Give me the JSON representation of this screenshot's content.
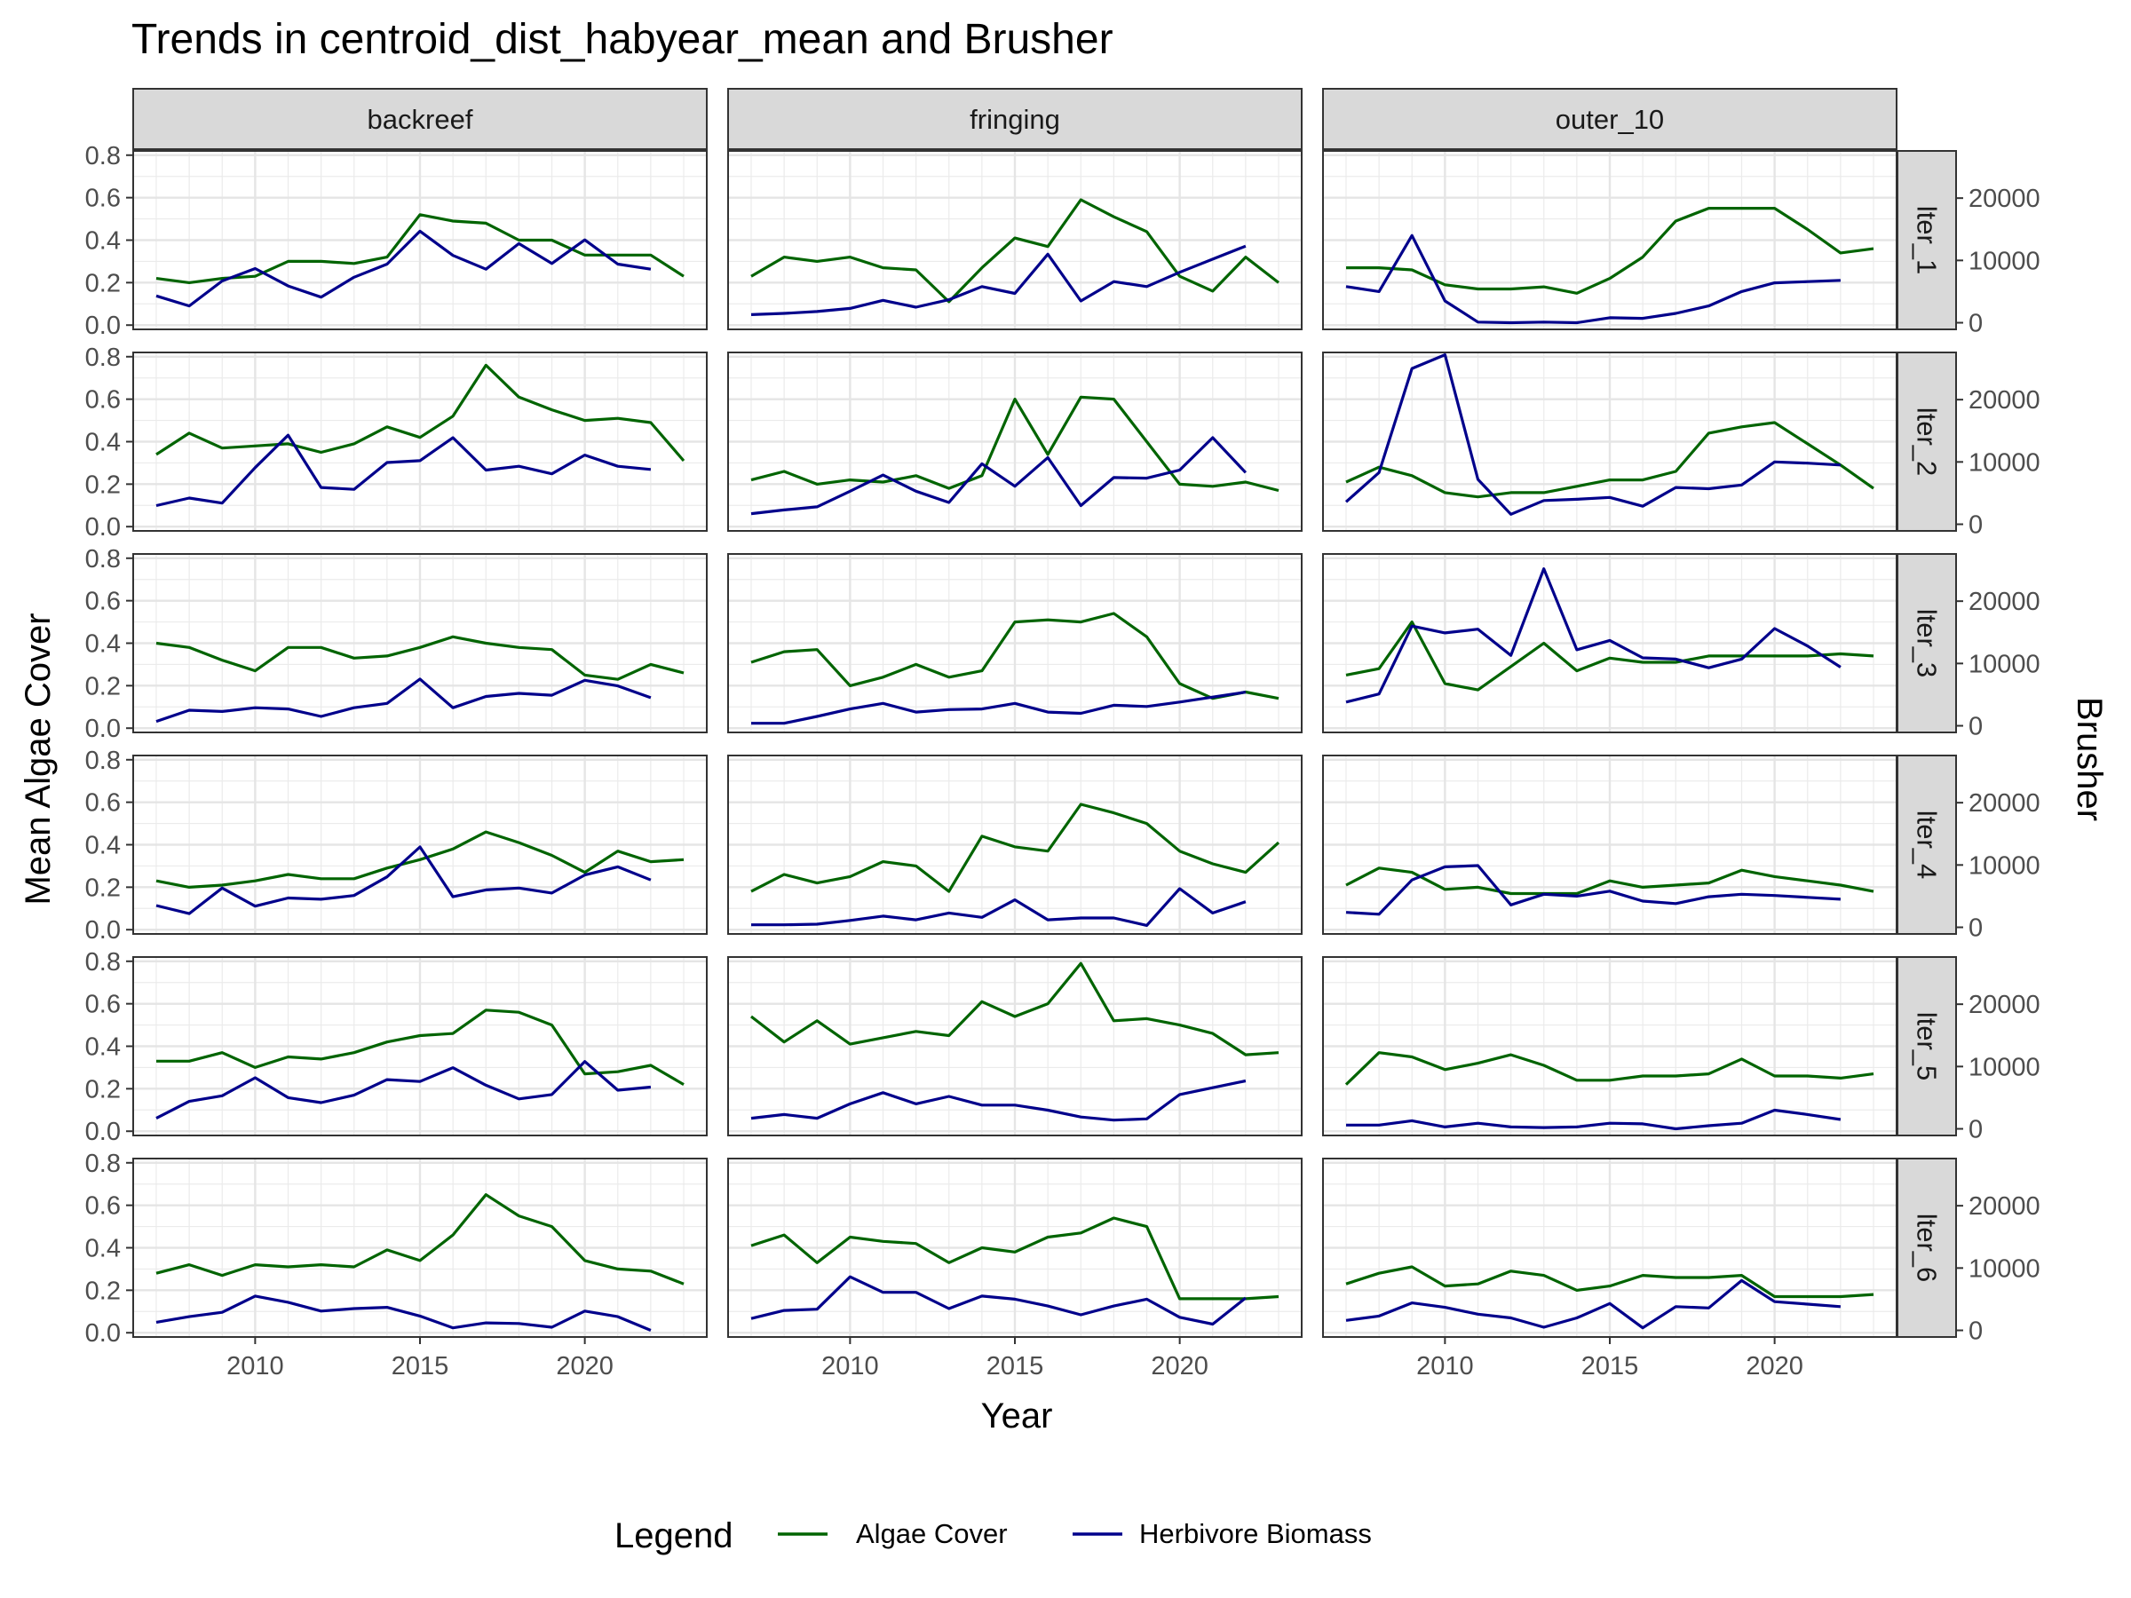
{
  "chart_data": {
    "type": "line",
    "title": "Trends in centroid_dist_habyear_mean and Brusher",
    "xlabel": "Year",
    "ylabel": "Mean Algae Cover",
    "y2label": "Brusher",
    "xlim": [
      2006.3,
      2023.7
    ],
    "ylim": [
      -0.02,
      0.82
    ],
    "y2lim": [
      -1066,
      27574
    ],
    "x_ticks": [
      2010,
      2015,
      2020
    ],
    "y_ticks": [
      0.0,
      0.2,
      0.4,
      0.6,
      0.8
    ],
    "y2_ticks": [
      0,
      10000,
      20000
    ],
    "x_tick_labels": [
      "2010",
      "2015",
      "2020"
    ],
    "y_tick_labels": [
      "0.0",
      "0.2",
      "0.4",
      "0.6",
      "0.8"
    ],
    "y2_tick_labels": [
      "0",
      "10000",
      "20000"
    ],
    "grid": true,
    "legend": {
      "title": "Legend",
      "position": "bottom",
      "entries": [
        {
          "label": "Algae Cover",
          "color": "#006400"
        },
        {
          "label": "Herbivore Biomass",
          "color": "#00008b"
        }
      ]
    },
    "colors": {
      "algae": "#006400",
      "herbivore": "#00008b"
    },
    "columns": [
      "backreef",
      "fringing",
      "outer_10"
    ],
    "rows": [
      "lter_1",
      "lter_2",
      "lter_3",
      "lter_4",
      "lter_5",
      "lter_6"
    ],
    "algae_years": [
      2007,
      2008,
      2009,
      2010,
      2011,
      2012,
      2013,
      2014,
      2015,
      2016,
      2017,
      2018,
      2019,
      2020,
      2021,
      2022,
      2023
    ],
    "herbivore_years": [
      2007,
      2008,
      2009,
      2010,
      2011,
      2012,
      2013,
      2014,
      2015,
      2016,
      2017,
      2018,
      2019,
      2020,
      2021,
      2022
    ],
    "panels": [
      {
        "column": "backreef",
        "row": "lter_1",
        "algae": [
          0.22,
          0.2,
          0.22,
          0.23,
          0.3,
          0.3,
          0.29,
          0.32,
          0.52,
          0.49,
          0.48,
          0.4,
          0.4,
          0.33,
          0.33,
          0.33,
          0.23
        ],
        "herbivore": [
          4300,
          2700,
          6700,
          8700,
          5900,
          4100,
          7300,
          9400,
          14700,
          10800,
          8600,
          12700,
          9500,
          13300,
          9400,
          8600
        ]
      },
      {
        "column": "fringing",
        "row": "lter_1",
        "algae": [
          0.23,
          0.32,
          0.3,
          0.32,
          0.27,
          0.26,
          0.11,
          0.27,
          0.41,
          0.37,
          0.59,
          0.51,
          0.44,
          0.23,
          0.16,
          0.32,
          0.2
        ],
        "herbivore": [
          1300,
          1500,
          1800,
          2300,
          3600,
          2500,
          3700,
          5800,
          4700,
          11000,
          3500,
          6600,
          5800,
          8100,
          10200,
          12300
        ]
      },
      {
        "column": "outer_10",
        "row": "lter_1",
        "algae": [
          0.27,
          0.27,
          0.26,
          0.19,
          0.17,
          0.17,
          0.18,
          0.15,
          0.22,
          0.32,
          0.49,
          0.55,
          0.55,
          0.55,
          0.45,
          0.34,
          0.36
        ],
        "herbivore": [
          5800,
          5000,
          14000,
          3500,
          100,
          0,
          100,
          0,
          800,
          700,
          1500,
          2700,
          5000,
          6400,
          6600,
          6800
        ]
      },
      {
        "column": "backreef",
        "row": "lter_2",
        "algae": [
          0.34,
          0.44,
          0.37,
          0.38,
          0.39,
          0.35,
          0.39,
          0.47,
          0.42,
          0.52,
          0.76,
          0.61,
          0.55,
          0.5,
          0.51,
          0.49,
          0.31
        ],
        "herbivore": [
          3000,
          4200,
          3400,
          9100,
          14300,
          5900,
          5600,
          9900,
          10200,
          13900,
          8700,
          9300,
          8100,
          11100,
          9300,
          8800
        ]
      },
      {
        "column": "fringing",
        "row": "lter_2",
        "algae": [
          0.22,
          0.26,
          0.2,
          0.22,
          0.21,
          0.24,
          0.18,
          0.24,
          0.6,
          0.34,
          0.61,
          0.6,
          0.4,
          0.2,
          0.19,
          0.21,
          0.17
        ],
        "herbivore": [
          1700,
          2300,
          2800,
          5300,
          7900,
          5300,
          3500,
          9700,
          6100,
          10700,
          3000,
          7500,
          7400,
          8700,
          13900,
          8300
        ]
      },
      {
        "column": "outer_10",
        "row": "lter_2",
        "algae": [
          0.21,
          0.28,
          0.24,
          0.16,
          0.14,
          0.16,
          0.16,
          0.19,
          0.22,
          0.22,
          0.26,
          0.44,
          0.47,
          0.49,
          0.39,
          0.29,
          0.18
        ],
        "herbivore": [
          3600,
          8300,
          25000,
          27200,
          7200,
          1600,
          3800,
          4000,
          4300,
          2900,
          5900,
          5700,
          6300,
          10000,
          9800,
          9500
        ]
      },
      {
        "column": "backreef",
        "row": "lter_3",
        "algae": [
          0.4,
          0.38,
          0.32,
          0.27,
          0.38,
          0.38,
          0.33,
          0.34,
          0.38,
          0.43,
          0.4,
          0.38,
          0.37,
          0.25,
          0.23,
          0.3,
          0.26
        ],
        "herbivore": [
          700,
          2500,
          2300,
          2900,
          2700,
          1500,
          2900,
          3600,
          7500,
          2900,
          4700,
          5200,
          4900,
          7300,
          6400,
          4500
        ]
      },
      {
        "column": "fringing",
        "row": "lter_3",
        "algae": [
          0.31,
          0.36,
          0.37,
          0.2,
          0.24,
          0.3,
          0.24,
          0.27,
          0.5,
          0.51,
          0.5,
          0.54,
          0.43,
          0.21,
          0.14,
          0.17,
          0.14
        ],
        "herbivore": [
          400,
          400,
          1500,
          2700,
          3600,
          2200,
          2600,
          2700,
          3600,
          2200,
          2000,
          3300,
          3100,
          3800,
          4600,
          5400
        ]
      },
      {
        "column": "outer_10",
        "row": "lter_3",
        "algae": [
          0.25,
          0.28,
          0.5,
          0.21,
          0.18,
          0.29,
          0.4,
          0.27,
          0.33,
          0.31,
          0.31,
          0.34,
          0.34,
          0.34,
          0.34,
          0.35,
          0.34
        ],
        "herbivore": [
          3800,
          5100,
          16000,
          14900,
          15500,
          11300,
          25200,
          12200,
          13700,
          10900,
          10700,
          9300,
          10700,
          15600,
          12800,
          9400
        ]
      },
      {
        "column": "backreef",
        "row": "lter_4",
        "algae": [
          0.23,
          0.2,
          0.21,
          0.23,
          0.26,
          0.24,
          0.24,
          0.29,
          0.33,
          0.38,
          0.46,
          0.41,
          0.35,
          0.27,
          0.37,
          0.32,
          0.33
        ],
        "herbivore": [
          3500,
          2200,
          6300,
          3400,
          4700,
          4500,
          5100,
          8100,
          12900,
          4900,
          6000,
          6300,
          5500,
          8400,
          9700,
          7600
        ]
      },
      {
        "column": "fringing",
        "row": "lter_4",
        "algae": [
          0.18,
          0.26,
          0.22,
          0.25,
          0.32,
          0.3,
          0.18,
          0.44,
          0.39,
          0.37,
          0.59,
          0.55,
          0.5,
          0.37,
          0.31,
          0.27,
          0.41
        ],
        "herbivore": [
          400,
          400,
          500,
          1100,
          1800,
          1200,
          2300,
          1600,
          4400,
          1200,
          1500,
          1500,
          300,
          6200,
          2300,
          4100
        ]
      },
      {
        "column": "outer_10",
        "row": "lter_4",
        "algae": [
          0.21,
          0.29,
          0.27,
          0.19,
          0.2,
          0.17,
          0.17,
          0.17,
          0.23,
          0.2,
          0.21,
          0.22,
          0.28,
          0.25,
          0.23,
          0.21,
          0.18
        ],
        "herbivore": [
          2400,
          2100,
          7600,
          9700,
          9900,
          3600,
          5300,
          5000,
          5800,
          4200,
          3800,
          4900,
          5300,
          5100,
          4800,
          4500
        ]
      },
      {
        "column": "backreef",
        "row": "lter_5",
        "algae": [
          0.33,
          0.33,
          0.37,
          0.3,
          0.35,
          0.34,
          0.37,
          0.42,
          0.45,
          0.46,
          0.57,
          0.56,
          0.5,
          0.27,
          0.28,
          0.31,
          0.22
        ],
        "herbivore": [
          1700,
          4400,
          5300,
          8200,
          5000,
          4200,
          5400,
          7900,
          7600,
          9800,
          7000,
          4800,
          5500,
          10800,
          6200,
          6700
        ]
      },
      {
        "column": "fringing",
        "row": "lter_5",
        "algae": [
          0.54,
          0.42,
          0.52,
          0.41,
          0.44,
          0.47,
          0.45,
          0.61,
          0.54,
          0.6,
          0.79,
          0.52,
          0.53,
          0.5,
          0.46,
          0.36,
          0.37
        ],
        "herbivore": [
          1700,
          2300,
          1700,
          4000,
          5800,
          4000,
          5200,
          3800,
          3800,
          3000,
          1900,
          1400,
          1600,
          5500,
          6600,
          7700
        ]
      },
      {
        "column": "outer_10",
        "row": "lter_5",
        "algae": [
          0.22,
          0.37,
          0.35,
          0.29,
          0.32,
          0.36,
          0.31,
          0.24,
          0.24,
          0.26,
          0.26,
          0.27,
          0.34,
          0.26,
          0.26,
          0.25,
          0.27
        ],
        "herbivore": [
          600,
          600,
          1300,
          300,
          900,
          300,
          200,
          300,
          900,
          800,
          0,
          500,
          900,
          3000,
          2300,
          1500
        ]
      },
      {
        "column": "backreef",
        "row": "lter_6",
        "algae": [
          0.28,
          0.32,
          0.27,
          0.32,
          0.31,
          0.32,
          0.31,
          0.39,
          0.34,
          0.46,
          0.65,
          0.55,
          0.5,
          0.34,
          0.3,
          0.29,
          0.23
        ],
        "herbivore": [
          1300,
          2200,
          2900,
          5500,
          4500,
          3100,
          3500,
          3700,
          2300,
          400,
          1200,
          1100,
          500,
          3100,
          2200,
          0
        ]
      },
      {
        "column": "fringing",
        "row": "lter_6",
        "algae": [
          0.41,
          0.46,
          0.33,
          0.45,
          0.43,
          0.42,
          0.33,
          0.4,
          0.38,
          0.45,
          0.47,
          0.54,
          0.5,
          0.16,
          0.16,
          0.16,
          0.17
        ],
        "herbivore": [
          1900,
          3200,
          3400,
          8600,
          6100,
          6100,
          3500,
          5500,
          5000,
          3900,
          2500,
          3900,
          5000,
          2100,
          1000,
          5200
        ]
      },
      {
        "column": "outer_10",
        "row": "lter_6",
        "algae": [
          0.23,
          0.28,
          0.31,
          0.22,
          0.23,
          0.29,
          0.27,
          0.2,
          0.22,
          0.27,
          0.26,
          0.26,
          0.27,
          0.17,
          0.17,
          0.17,
          0.18
        ],
        "herbivore": [
          1600,
          2300,
          4400,
          3700,
          2600,
          2000,
          500,
          2000,
          4300,
          400,
          3800,
          3600,
          8000,
          4600,
          4200,
          3800
        ]
      }
    ]
  }
}
